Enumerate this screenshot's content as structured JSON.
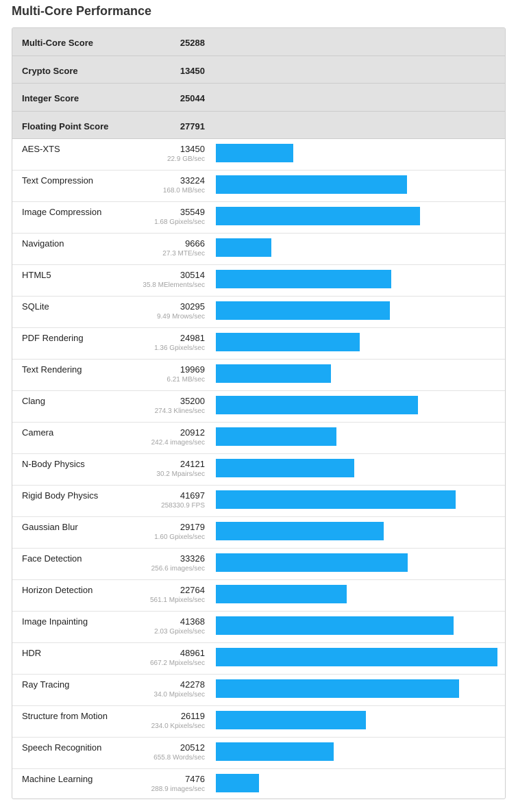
{
  "header": {
    "title": "Multi-Core Performance"
  },
  "colors": {
    "bar": "#1aa9f5",
    "summary_row_bg": "#e2e2e2",
    "rate_text": "#a3a3a3"
  },
  "summary": [
    {
      "label": "Multi-Core Score",
      "value": "25288"
    },
    {
      "label": "Crypto Score",
      "value": "13450"
    },
    {
      "label": "Integer Score",
      "value": "25044"
    },
    {
      "label": "Floating Point Score",
      "value": "27791"
    }
  ],
  "benchmarks": [
    {
      "name": "AES-XTS",
      "score": "13450",
      "rate": "22.9 GB/sec"
    },
    {
      "name": "Text Compression",
      "score": "33224",
      "rate": "168.0 MB/sec"
    },
    {
      "name": "Image Compression",
      "score": "35549",
      "rate": "1.68 Gpixels/sec"
    },
    {
      "name": "Navigation",
      "score": "9666",
      "rate": "27.3 MTE/sec"
    },
    {
      "name": "HTML5",
      "score": "30514",
      "rate": "35.8 MElements/sec"
    },
    {
      "name": "SQLite",
      "score": "30295",
      "rate": "9.49 Mrows/sec"
    },
    {
      "name": "PDF Rendering",
      "score": "24981",
      "rate": "1.36 Gpixels/sec"
    },
    {
      "name": "Text Rendering",
      "score": "19969",
      "rate": "6.21 MB/sec"
    },
    {
      "name": "Clang",
      "score": "35200",
      "rate": "274.3 Klines/sec"
    },
    {
      "name": "Camera",
      "score": "20912",
      "rate": "242.4 images/sec"
    },
    {
      "name": "N-Body Physics",
      "score": "24121",
      "rate": "30.2 Mpairs/sec"
    },
    {
      "name": "Rigid Body Physics",
      "score": "41697",
      "rate": "258330.9 FPS"
    },
    {
      "name": "Gaussian Blur",
      "score": "29179",
      "rate": "1.60 Gpixels/sec"
    },
    {
      "name": "Face Detection",
      "score": "33326",
      "rate": "256.6 images/sec"
    },
    {
      "name": "Horizon Detection",
      "score": "22764",
      "rate": "561.1 Mpixels/sec"
    },
    {
      "name": "Image Inpainting",
      "score": "41368",
      "rate": "2.03 Gpixels/sec"
    },
    {
      "name": "HDR",
      "score": "48961",
      "rate": "667.2 Mpixels/sec"
    },
    {
      "name": "Ray Tracing",
      "score": "42278",
      "rate": "34.0 Mpixels/sec"
    },
    {
      "name": "Structure from Motion",
      "score": "26119",
      "rate": "234.0 Kpixels/sec"
    },
    {
      "name": "Speech Recognition",
      "score": "20512",
      "rate": "655.8 Words/sec"
    },
    {
      "name": "Machine Learning",
      "score": "7476",
      "rate": "288.9 images/sec"
    }
  ],
  "chart_data": {
    "type": "bar",
    "orientation": "horizontal",
    "title": "Multi-Core Performance",
    "categories": [
      "AES-XTS",
      "Text Compression",
      "Image Compression",
      "Navigation",
      "HTML5",
      "SQLite",
      "PDF Rendering",
      "Text Rendering",
      "Clang",
      "Camera",
      "N-Body Physics",
      "Rigid Body Physics",
      "Gaussian Blur",
      "Face Detection",
      "Horizon Detection",
      "Image Inpainting",
      "HDR",
      "Ray Tracing",
      "Structure from Motion",
      "Speech Recognition",
      "Machine Learning"
    ],
    "values": [
      13450,
      33224,
      35549,
      9666,
      30514,
      30295,
      24981,
      19969,
      35200,
      20912,
      24121,
      41697,
      29179,
      33326,
      22764,
      41368,
      48961,
      42278,
      26119,
      20512,
      7476
    ],
    "xlim": [
      0,
      48961
    ],
    "grid": false,
    "legend": "none"
  }
}
